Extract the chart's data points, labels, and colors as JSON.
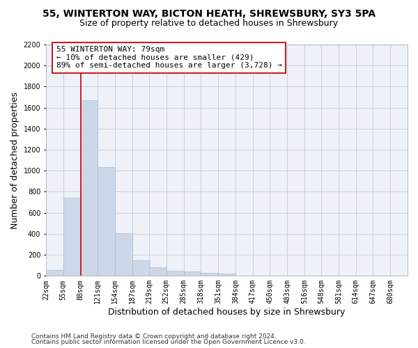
{
  "title_line1": "55, WINTERTON WAY, BICTON HEATH, SHREWSBURY, SY3 5PA",
  "title_line2": "Size of property relative to detached houses in Shrewsbury",
  "xlabel": "Distribution of detached houses by size in Shrewsbury",
  "ylabel": "Number of detached properties",
  "bar_values": [
    55,
    745,
    1670,
    1035,
    405,
    150,
    80,
    48,
    42,
    28,
    20,
    0,
    0,
    0,
    0,
    0,
    0,
    0,
    0,
    0
  ],
  "bin_labels": [
    "22sqm",
    "55sqm",
    "88sqm",
    "121sqm",
    "154sqm",
    "187sqm",
    "219sqm",
    "252sqm",
    "285sqm",
    "318sqm",
    "351sqm",
    "384sqm",
    "417sqm",
    "450sqm",
    "483sqm",
    "516sqm",
    "548sqm",
    "581sqm",
    "614sqm",
    "647sqm",
    "680sqm"
  ],
  "bin_edges": [
    22,
    55,
    88,
    121,
    154,
    187,
    219,
    252,
    285,
    318,
    351,
    384,
    417,
    450,
    483,
    516,
    548,
    581,
    614,
    647,
    680
  ],
  "bar_color": "#ccd8e8",
  "bar_edge_color": "#aabcd0",
  "grid_color": "#c8d0dc",
  "background_color": "#eef2f8",
  "vline_x": 88,
  "vline_color": "#cc0000",
  "annotation_text_line1": "55 WINTERTON WAY: 79sqm",
  "annotation_text_line2": "← 10% of detached houses are smaller (429)",
  "annotation_text_line3": "89% of semi-detached houses are larger (3,728) →",
  "annotation_box_color": "#ffffff",
  "annotation_border_color": "#cc0000",
  "ylim": [
    0,
    2200
  ],
  "yticks": [
    0,
    200,
    400,
    600,
    800,
    1000,
    1200,
    1400,
    1600,
    1800,
    2000,
    2200
  ],
  "footer_line1": "Contains HM Land Registry data © Crown copyright and database right 2024.",
  "footer_line2": "Contains public sector information licensed under the Open Government Licence v3.0.",
  "title_fontsize": 10,
  "subtitle_fontsize": 9,
  "axis_label_fontsize": 9,
  "tick_fontsize": 7,
  "annotation_fontsize": 8,
  "footer_fontsize": 6.5
}
